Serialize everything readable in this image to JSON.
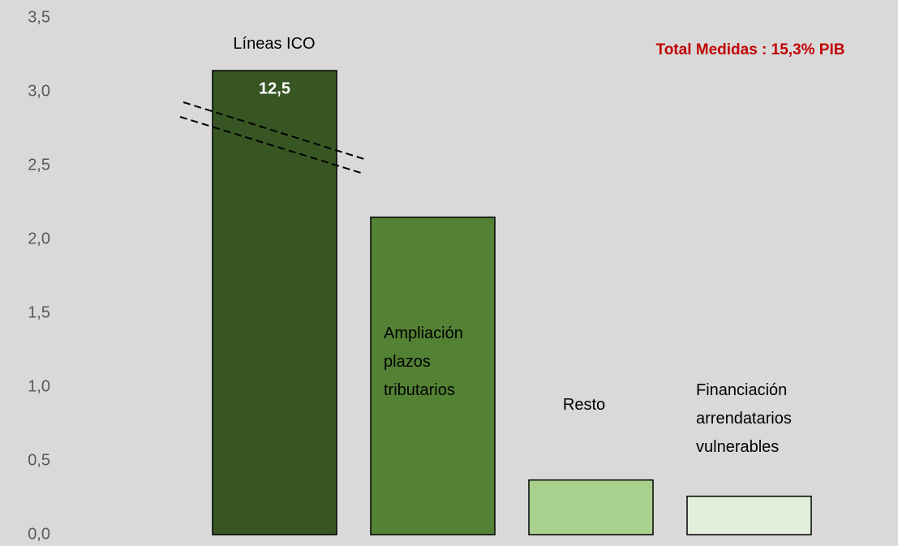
{
  "chart_data": {
    "type": "bar",
    "annotation": "Total Medidas : 15,3% PIB",
    "categories": [
      "Líneas ICO",
      "Ampliación\nplazos\ntributarios",
      "Resto",
      "Financiación\narrendatarios\nvulnerables"
    ],
    "values": [
      12.5,
      2.15,
      0.37,
      0.26
    ],
    "value_labels": [
      "12,5",
      null,
      null,
      null
    ],
    "colors": [
      "#375623",
      "#548235",
      "#a9d18e",
      "#e2efda"
    ],
    "ylim": [
      0,
      3.5
    ],
    "yticks": [
      {
        "value": 0,
        "label": "0,0"
      },
      {
        "value": 0.5,
        "label": "0,5"
      },
      {
        "value": 1,
        "label": "1,0"
      },
      {
        "value": 1.5,
        "label": "1,5"
      },
      {
        "value": 2,
        "label": "2,0"
      },
      {
        "value": 2.5,
        "label": "2,5"
      },
      {
        "value": 3,
        "label": "3,0"
      },
      {
        "value": 3.5,
        "label": "3,5"
      }
    ],
    "grid": false
  }
}
